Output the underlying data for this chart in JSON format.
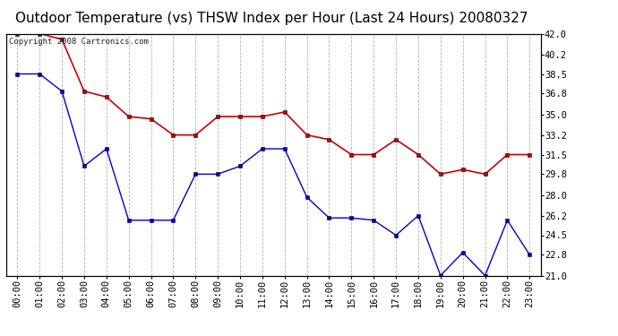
{
  "title": "Outdoor Temperature (vs) THSW Index per Hour (Last 24 Hours) 20080327",
  "copyright_text": "Copyright 2008 Cartronics.com",
  "hours": [
    0,
    1,
    2,
    3,
    4,
    5,
    6,
    7,
    8,
    9,
    10,
    11,
    12,
    13,
    14,
    15,
    16,
    17,
    18,
    19,
    20,
    21,
    22,
    23
  ],
  "hour_labels": [
    "00:00",
    "01:00",
    "02:00",
    "03:00",
    "04:00",
    "05:00",
    "06:00",
    "07:00",
    "08:00",
    "09:00",
    "10:00",
    "11:00",
    "12:00",
    "13:00",
    "14:00",
    "15:00",
    "16:00",
    "17:00",
    "18:00",
    "19:00",
    "20:00",
    "21:00",
    "22:00",
    "23:00"
  ],
  "temp_blue": [
    38.5,
    38.5,
    37.0,
    30.5,
    32.0,
    25.8,
    25.8,
    25.8,
    29.8,
    29.8,
    30.5,
    32.0,
    32.0,
    27.8,
    26.0,
    26.0,
    25.8,
    24.5,
    26.2,
    21.0,
    23.0,
    21.0,
    25.8,
    22.8
  ],
  "thsw_red": [
    42.0,
    42.0,
    41.5,
    37.0,
    36.5,
    34.8,
    34.6,
    33.2,
    33.2,
    34.8,
    34.8,
    34.8,
    35.2,
    33.2,
    32.8,
    31.5,
    31.5,
    32.8,
    31.5,
    29.8,
    30.2,
    29.8,
    31.5,
    31.5
  ],
  "blue_color": "#0000cc",
  "red_color": "#cc0000",
  "bg_color": "#ffffff",
  "grid_color": "#aaaaaa",
  "ylim": [
    21.0,
    42.0
  ],
  "yticks_right": [
    21.0,
    22.8,
    24.5,
    26.2,
    28.0,
    29.8,
    31.5,
    33.2,
    35.0,
    36.8,
    38.5,
    40.2,
    42.0
  ],
  "title_fontsize": 11,
  "tick_fontsize": 7.5,
  "copyright_fontsize": 6.5
}
